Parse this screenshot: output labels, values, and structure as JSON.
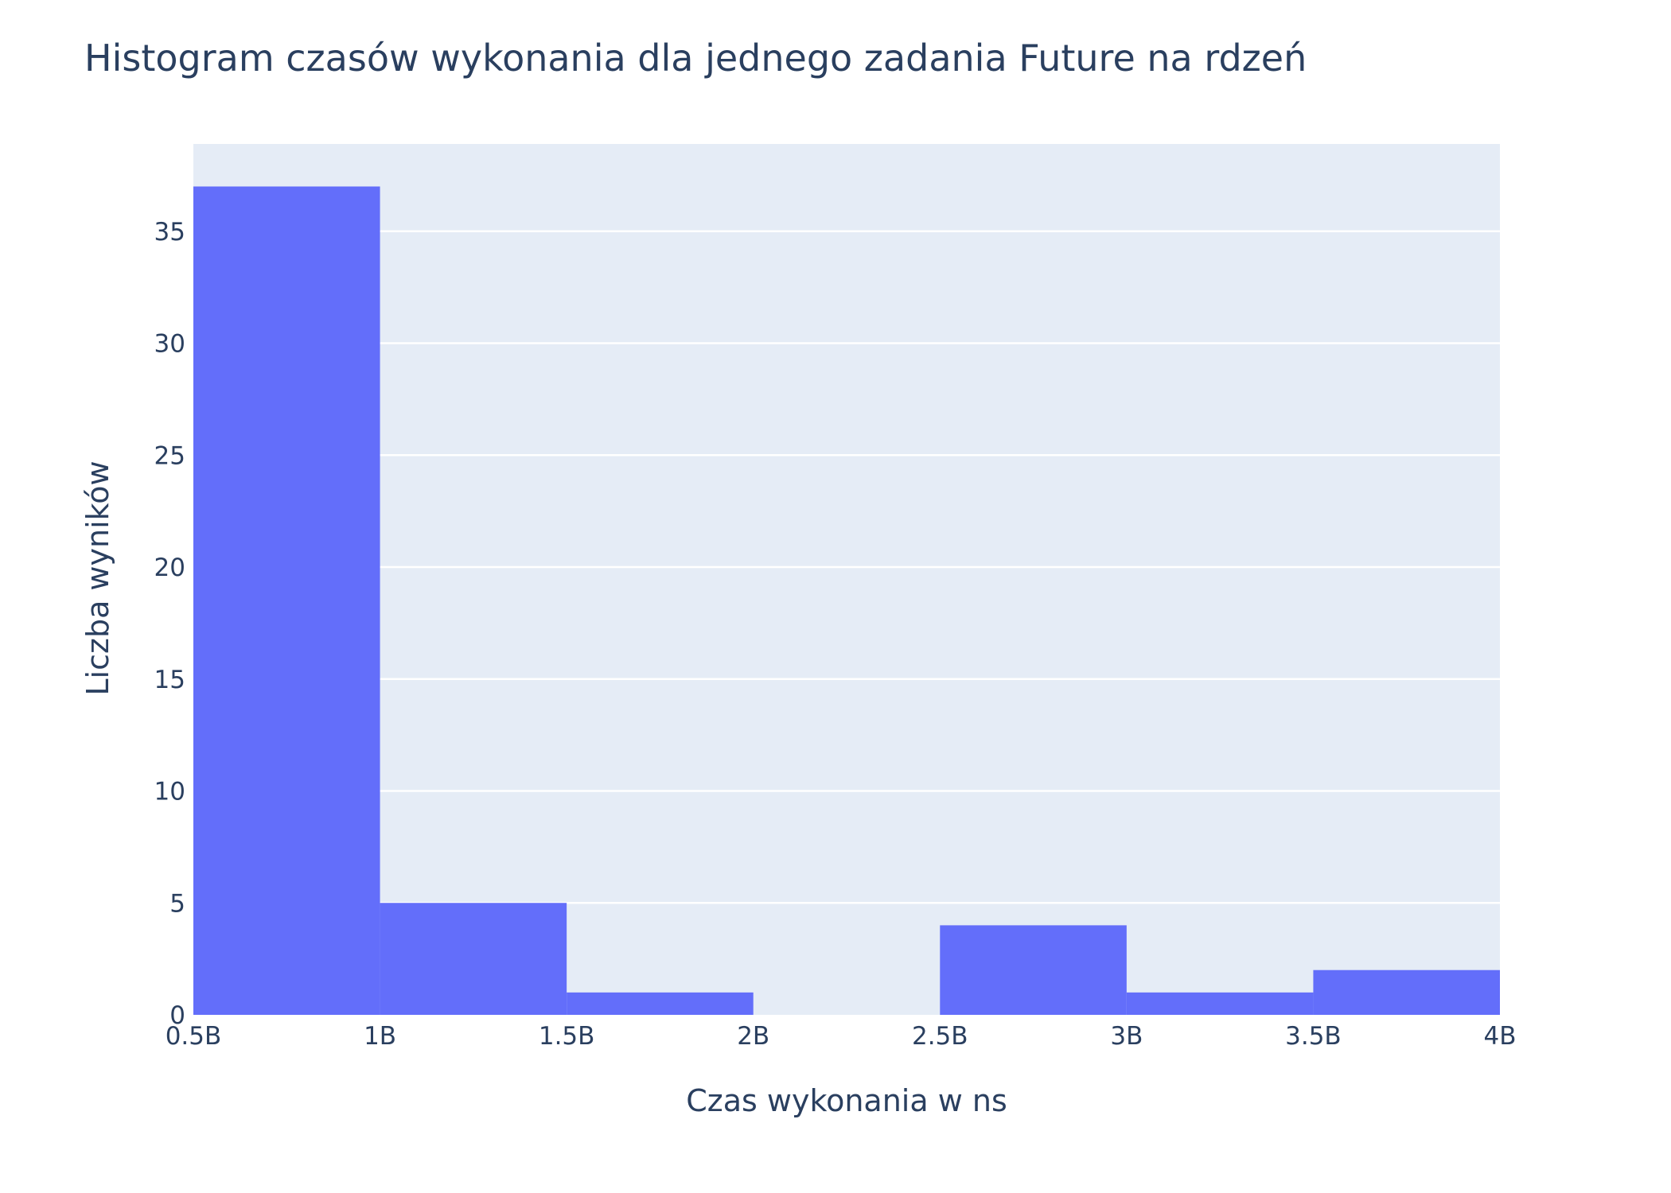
{
  "chart_data": {
    "type": "bar",
    "title": "Histogram czasów wykonania dla jednego zadania Future na rdzeń",
    "xlabel": "Czas wykonania w ns",
    "ylabel": "Liczba wyników",
    "bins": [
      {
        "x0": 0.5,
        "x1": 1.0,
        "count": 37
      },
      {
        "x0": 1.0,
        "x1": 1.5,
        "count": 5
      },
      {
        "x0": 1.5,
        "x1": 2.0,
        "count": 1
      },
      {
        "x0": 2.0,
        "x1": 2.5,
        "count": 0
      },
      {
        "x0": 2.5,
        "x1": 3.0,
        "count": 4
      },
      {
        "x0": 3.0,
        "x1": 3.5,
        "count": 1
      },
      {
        "x0": 3.5,
        "x1": 4.0,
        "count": 2
      }
    ],
    "x_unit": "billions of ns",
    "xlim": [
      0.5,
      4.0
    ],
    "ylim": [
      0,
      38.9
    ],
    "x_ticks": [
      {
        "value": 0.5,
        "label": "0.5B"
      },
      {
        "value": 1.0,
        "label": "1B"
      },
      {
        "value": 1.5,
        "label": "1.5B"
      },
      {
        "value": 2.0,
        "label": "2B"
      },
      {
        "value": 2.5,
        "label": "2.5B"
      },
      {
        "value": 3.0,
        "label": "3B"
      },
      {
        "value": 3.5,
        "label": "3.5B"
      },
      {
        "value": 4.0,
        "label": "4B"
      }
    ],
    "y_ticks": [
      {
        "value": 0,
        "label": "0"
      },
      {
        "value": 5,
        "label": "5"
      },
      {
        "value": 10,
        "label": "10"
      },
      {
        "value": 15,
        "label": "15"
      },
      {
        "value": 20,
        "label": "20"
      },
      {
        "value": 25,
        "label": "25"
      },
      {
        "value": 30,
        "label": "30"
      },
      {
        "value": 35,
        "label": "35"
      }
    ],
    "grid": true,
    "legend": "none",
    "colors": {
      "bar": "#636efa",
      "plot_background": "#e5ecf6",
      "grid": "#ffffff",
      "text": "#2a3f5f"
    }
  }
}
